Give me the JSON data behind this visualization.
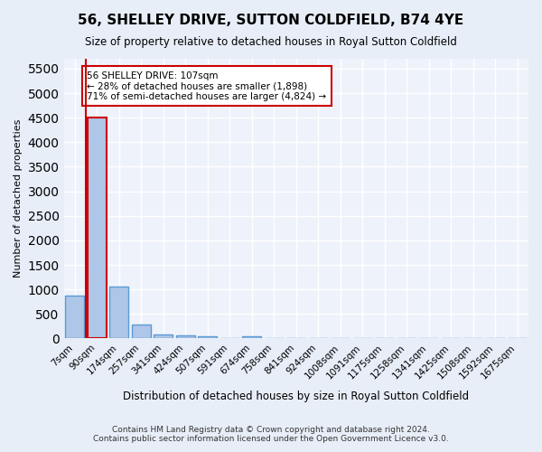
{
  "title": "56, SHELLEY DRIVE, SUTTON COLDFIELD, B74 4YE",
  "subtitle": "Size of property relative to detached houses in Royal Sutton Coldfield",
  "xlabel": "Distribution of detached houses by size in Royal Sutton Coldfield",
  "ylabel": "Number of detached properties",
  "footer_line1": "Contains HM Land Registry data © Crown copyright and database right 2024.",
  "footer_line2": "Contains public sector information licensed under the Open Government Licence v3.0.",
  "bin_labels": [
    "7sqm",
    "90sqm",
    "174sqm",
    "257sqm",
    "341sqm",
    "424sqm",
    "507sqm",
    "591sqm",
    "674sqm",
    "758sqm",
    "841sqm",
    "924sqm",
    "1008sqm",
    "1091sqm",
    "1175sqm",
    "1258sqm",
    "1341sqm",
    "1425sqm",
    "1508sqm",
    "1592sqm",
    "1675sqm"
  ],
  "bar_values": [
    880,
    4500,
    1050,
    280,
    90,
    70,
    50,
    0,
    45,
    0,
    0,
    0,
    0,
    0,
    0,
    0,
    0,
    0,
    0,
    0,
    0
  ],
  "bar_color": "#aec6e8",
  "bar_edge_color": "#5b9bd5",
  "highlight_bar_index": 1,
  "vline_color": "#cc0000",
  "vline_x": 0.5,
  "ylim": [
    0,
    5700
  ],
  "yticks": [
    0,
    500,
    1000,
    1500,
    2000,
    2500,
    3000,
    3500,
    4000,
    4500,
    5000,
    5500
  ],
  "annotation_line1": "56 SHELLEY DRIVE: 107sqm",
  "annotation_line2": "← 28% of detached houses are smaller (1,898)",
  "annotation_line3": "71% of semi-detached houses are larger (4,824) →",
  "annotation_box_color": "#ffffff",
  "annotation_box_edge_color": "#cc0000",
  "bg_color": "#e8eef8",
  "plot_bg_color": "#eef2fb"
}
